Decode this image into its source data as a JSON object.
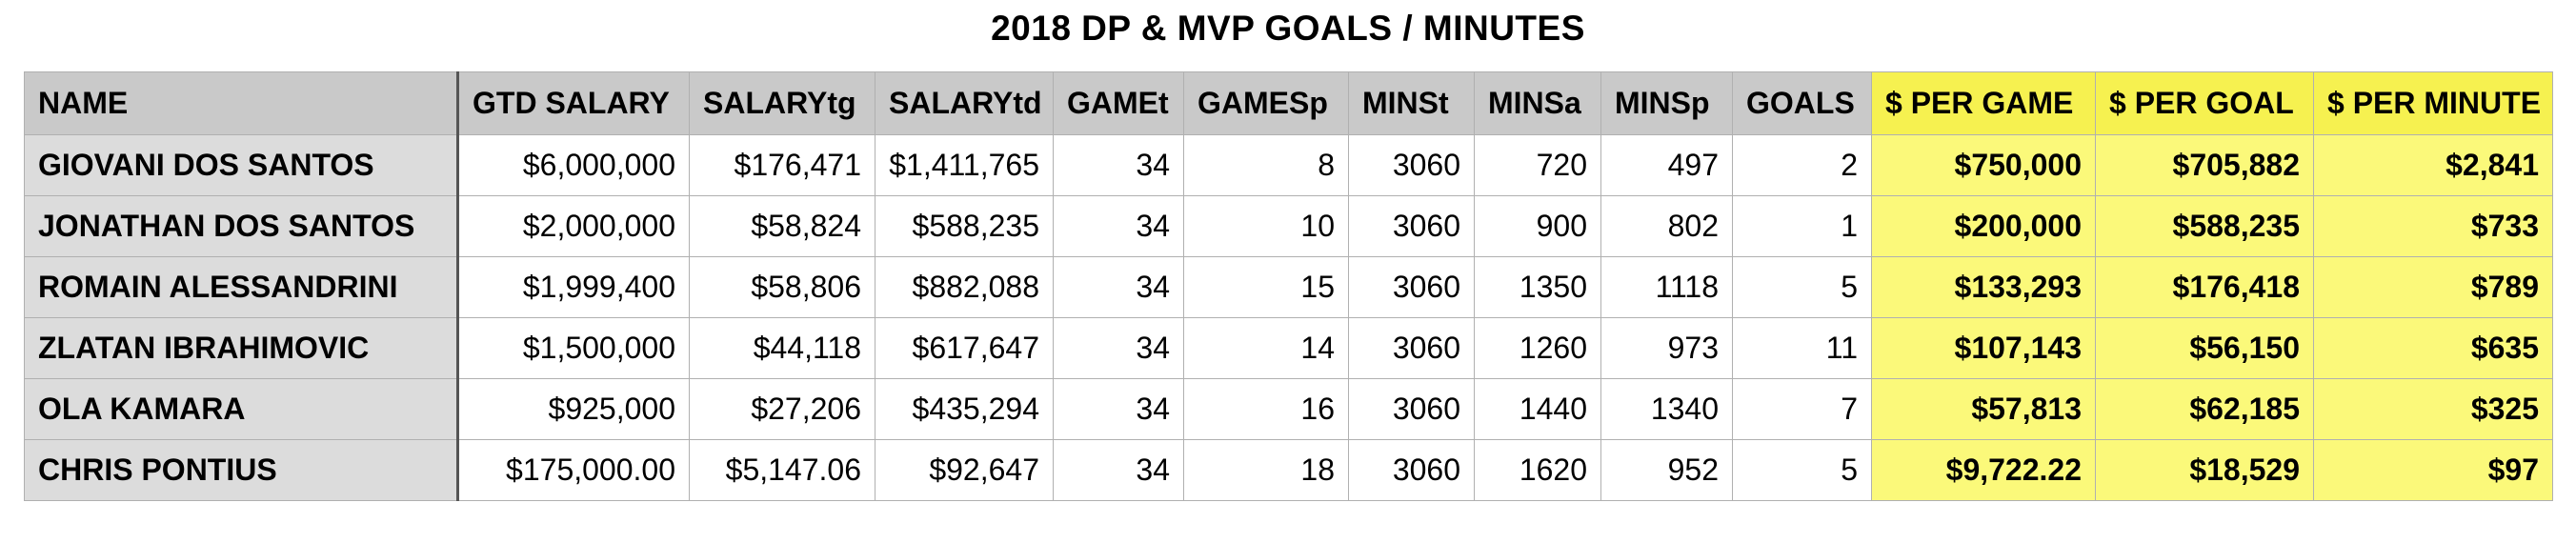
{
  "title": "2018 DP & MVP GOALS / MINUTES",
  "columns": [
    "NAME",
    "GTD SALARY",
    "SALARYtg",
    "SALARYtd",
    "GAMEt",
    "GAMESp",
    "MINSt",
    "MINSa",
    "MINSp",
    "GOALS",
    "$ PER GAME",
    "$ PER GOAL",
    "$ PER MINUTE"
  ],
  "rows": [
    [
      "GIOVANI DOS SANTOS",
      "$6,000,000",
      "$176,471",
      "$1,411,765",
      "34",
      "8",
      "3060",
      "720",
      "497",
      "2",
      "$750,000",
      "$705,882",
      "$2,841"
    ],
    [
      "JONATHAN DOS SANTOS",
      "$2,000,000",
      "$58,824",
      "$588,235",
      "34",
      "10",
      "3060",
      "900",
      "802",
      "1",
      "$200,000",
      "$588,235",
      "$733"
    ],
    [
      "ROMAIN ALESSANDRINI",
      "$1,999,400",
      "$58,806",
      "$882,088",
      "34",
      "15",
      "3060",
      "1350",
      "1118",
      "5",
      "$133,293",
      "$176,418",
      "$789"
    ],
    [
      "ZLATAN IBRAHIMOVIC",
      "$1,500,000",
      "$44,118",
      "$617,647",
      "34",
      "14",
      "3060",
      "1260",
      "973",
      "11",
      "$107,143",
      "$56,150",
      "$635"
    ],
    [
      "OLA KAMARA",
      "$925,000",
      "$27,206",
      "$435,294",
      "34",
      "16",
      "3060",
      "1440",
      "1340",
      "7",
      "$57,813",
      "$62,185",
      "$325"
    ],
    [
      "CHRIS PONTIUS",
      "$175,000.00",
      "$5,147.06",
      "$92,647",
      "34",
      "18",
      "3060",
      "1620",
      "952",
      "5",
      "$9,722.22",
      "$18,529",
      "$97"
    ]
  ],
  "colors": {
    "header_bg": "#c9c9c9",
    "name_bg": "#dcdcdc",
    "highlight_bg": "#fbf97a"
  }
}
